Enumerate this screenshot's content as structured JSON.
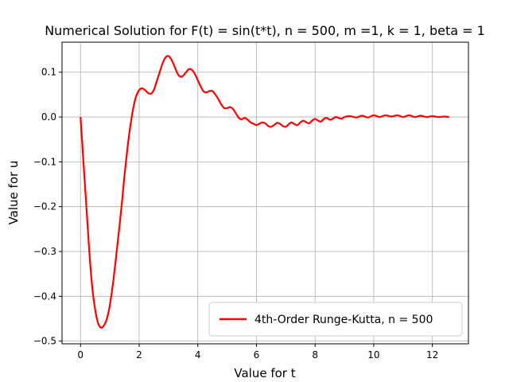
{
  "chart_data": {
    "type": "line",
    "title": "Numerical Solution for F(t) = sin(t*t), n = 500, m =1, k = 1, beta = 1",
    "xlabel": "Value for t",
    "ylabel": "Value for u",
    "xlim": [
      -0.63,
      13.23
    ],
    "ylim": [
      -0.506,
      0.167
    ],
    "xticks": [
      0,
      2,
      4,
      6,
      8,
      10,
      12
    ],
    "xtick_labels": [
      "0",
      "2",
      "4",
      "6",
      "8",
      "10",
      "12"
    ],
    "yticks": [
      -0.5,
      -0.4,
      -0.3,
      -0.2,
      -0.1,
      0.0,
      0.1
    ],
    "ytick_labels": [
      "−0.5",
      "−0.4",
      "−0.3",
      "−0.2",
      "−0.1",
      "0.0",
      "0.1"
    ],
    "grid": true,
    "legend_position": "lower-right",
    "series": [
      {
        "name": "4th-Order Runge-Kutta, n = 500",
        "color": "#ff0000",
        "x": [
          0,
          0.1,
          0.2,
          0.3,
          0.4,
          0.5,
          0.6,
          0.7,
          0.8,
          0.9,
          1.0,
          1.1,
          1.2,
          1.3,
          1.4,
          1.5,
          1.6,
          1.7,
          1.8,
          1.9,
          2.0,
          2.1,
          2.2,
          2.3,
          2.4,
          2.5,
          2.6,
          2.7,
          2.8,
          2.9,
          3.0,
          3.1,
          3.2,
          3.3,
          3.4,
          3.5,
          3.6,
          3.7,
          3.8,
          3.9,
          4.0,
          4.1,
          4.2,
          4.3,
          4.4,
          4.5,
          4.6,
          4.7,
          4.8,
          4.9,
          5.0,
          5.1,
          5.2,
          5.3,
          5.4,
          5.5,
          5.6,
          5.7,
          5.8,
          5.9,
          6.0,
          6.1,
          6.2,
          6.3,
          6.4,
          6.5,
          6.6,
          6.7,
          6.8,
          6.9,
          7.0,
          7.1,
          7.2,
          7.3,
          7.4,
          7.5,
          7.6,
          7.7,
          7.8,
          7.9,
          8.0,
          8.1,
          8.2,
          8.3,
          8.4,
          8.5,
          8.6,
          8.7,
          8.8,
          8.9,
          9.0,
          9.2,
          9.4,
          9.6,
          9.8,
          10.0,
          10.2,
          10.4,
          10.6,
          10.8,
          11.0,
          11.2,
          11.4,
          11.6,
          11.8,
          12.0,
          12.2,
          12.4,
          12.57
        ],
        "y": [
          0,
          -0.1,
          -0.2,
          -0.3,
          -0.38,
          -0.43,
          -0.46,
          -0.47,
          -0.465,
          -0.45,
          -0.42,
          -0.375,
          -0.32,
          -0.26,
          -0.2,
          -0.13,
          -0.07,
          -0.02,
          0.02,
          0.047,
          0.06,
          0.064,
          0.06,
          0.054,
          0.052,
          0.06,
          0.08,
          0.1,
          0.12,
          0.133,
          0.136,
          0.128,
          0.114,
          0.098,
          0.09,
          0.092,
          0.1,
          0.107,
          0.105,
          0.096,
          0.082,
          0.068,
          0.057,
          0.055,
          0.058,
          0.058,
          0.05,
          0.04,
          0.028,
          0.02,
          0.02,
          0.022,
          0.018,
          0.008,
          -0.002,
          -0.005,
          -0.002,
          -0.006,
          -0.012,
          -0.015,
          -0.018,
          -0.015,
          -0.012,
          -0.014,
          -0.02,
          -0.022,
          -0.018,
          -0.013,
          -0.015,
          -0.02,
          -0.022,
          -0.016,
          -0.012,
          -0.016,
          -0.018,
          -0.012,
          -0.008,
          -0.012,
          -0.014,
          -0.008,
          -0.004,
          -0.008,
          -0.01,
          -0.004,
          -0.002,
          -0.006,
          -0.004,
          0,
          -0.002,
          -0.004,
          0,
          0.002,
          -0.001,
          0.003,
          -0.001,
          0.004,
          0,
          0.004,
          0.001,
          0.004,
          0,
          0.004,
          0,
          0.003,
          0,
          0.002,
          0,
          0.001,
          0
        ]
      }
    ]
  }
}
